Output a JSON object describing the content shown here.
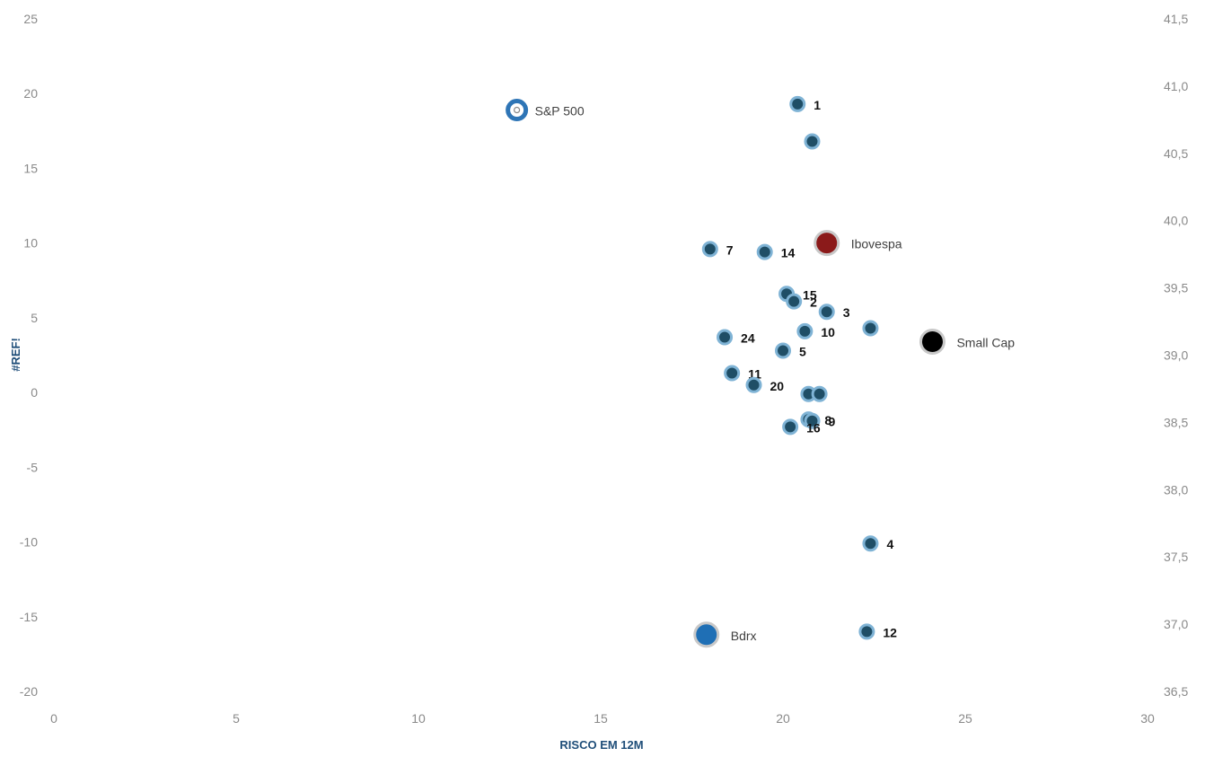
{
  "chart_data": {
    "type": "scatter",
    "xlabel": "RISCO EM 12M",
    "ylabel": "#REF!",
    "xlim": [
      0,
      30
    ],
    "ylim": [
      -20,
      25
    ],
    "y2lim": [
      36.5,
      41.5
    ],
    "xticks": [
      "0",
      "5",
      "10",
      "15",
      "20",
      "25",
      "30"
    ],
    "yticks": [
      "25",
      "20",
      "15",
      "10",
      "5",
      "0",
      "-5",
      "-10",
      "-15",
      "-20"
    ],
    "y2ticks": [
      "41,5",
      "41,0",
      "40,5",
      "40,0",
      "39,5",
      "39,0",
      "38,5",
      "38,0",
      "37,5",
      "37,0",
      "36,5"
    ],
    "grid": false,
    "points": [
      {
        "label": "1",
        "x": 20.4,
        "y": 19.3
      },
      {
        "label": "",
        "x": 20.8,
        "y": 16.8
      },
      {
        "label": "7",
        "x": 18.0,
        "y": 9.6
      },
      {
        "label": "14",
        "x": 19.5,
        "y": 9.4
      },
      {
        "label": "15",
        "x": 20.1,
        "y": 6.6
      },
      {
        "label": "2",
        "x": 20.3,
        "y": 6.1
      },
      {
        "label": "3",
        "x": 21.2,
        "y": 5.4
      },
      {
        "label": "",
        "x": 22.4,
        "y": 4.3
      },
      {
        "label": "10",
        "x": 20.6,
        "y": 4.1
      },
      {
        "label": "24",
        "x": 18.4,
        "y": 3.7
      },
      {
        "label": "5",
        "x": 20.0,
        "y": 2.8
      },
      {
        "label": "11",
        "x": 18.6,
        "y": 1.3
      },
      {
        "label": "20",
        "x": 19.2,
        "y": 0.5
      },
      {
        "label": "",
        "x": 20.7,
        "y": -0.1
      },
      {
        "label": "",
        "x": 21.0,
        "y": -0.1
      },
      {
        "label": "8",
        "x": 20.7,
        "y": -1.8
      },
      {
        "label": "9",
        "x": 20.8,
        "y": -1.9
      },
      {
        "label": "16",
        "x": 20.2,
        "y": -2.3
      },
      {
        "label": "4",
        "x": 22.4,
        "y": -10.1
      },
      {
        "label": "12",
        "x": 22.3,
        "y": -16.0
      }
    ],
    "named_points": [
      {
        "label": "S&P 500",
        "x": 12.7,
        "y": 18.9,
        "style": "ring",
        "color": "#2e75b6"
      },
      {
        "label": "Ibovespa",
        "x": 21.2,
        "y": 10.0,
        "style": "filled",
        "color": "#8b1a1a"
      },
      {
        "label": "Small Cap",
        "x": 24.1,
        "y": 3.4,
        "style": "filled",
        "color": "#000000"
      },
      {
        "label": "Bdrx",
        "x": 17.9,
        "y": -16.2,
        "style": "filled",
        "color": "#1f6fb5"
      }
    ],
    "colors": {
      "point_fill": "#1f4e66",
      "point_stroke": "#7fb3d5",
      "tick_text": "#8a8a8a",
      "axis_title": "#1f4e79"
    }
  }
}
